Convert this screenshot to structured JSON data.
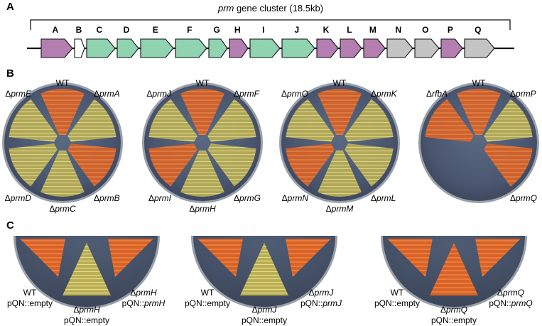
{
  "panelA": {
    "letter": "A",
    "title_italic": "prm",
    "title_rest": " gene cluster (18.5kb)",
    "genes": [
      {
        "label": "A",
        "color": "#b47fb0"
      },
      {
        "label": "B",
        "color": "#ffffff"
      },
      {
        "label": "C",
        "color": "#8fd3b0"
      },
      {
        "label": "D",
        "color": "#8fd3b0"
      },
      {
        "label": "E",
        "color": "#8fd3b0"
      },
      {
        "label": "F",
        "color": "#8fd3b0"
      },
      {
        "label": "G",
        "color": "#8fd3b0"
      },
      {
        "label": "H",
        "color": "#b47fb0"
      },
      {
        "label": "I",
        "color": "#8fd3b0"
      },
      {
        "label": "J",
        "color": "#8fd3b0"
      },
      {
        "label": "K",
        "color": "#b47fb0"
      },
      {
        "label": "L",
        "color": "#b47fb0"
      },
      {
        "label": "M",
        "color": "#b47fb0"
      },
      {
        "label": "N",
        "color": "#c4c4c4"
      },
      {
        "label": "O",
        "color": "#c4c4c4"
      },
      {
        "label": "P",
        "color": "#b47fb0"
      },
      {
        "label": "Q",
        "color": "#c4c4c4"
      }
    ]
  },
  "panelB": {
    "letter": "B",
    "plates": [
      {
        "top": "WT",
        "top_left": "ΔprmE",
        "top_right": "ΔprmA",
        "bottom_left": "ΔprmD",
        "bottom": "ΔprmC",
        "bottom_right": "ΔprmB"
      },
      {
        "top": "WT",
        "top_left": "ΔprmJ",
        "top_right": "ΔprmF",
        "bottom_left": "ΔprmI",
        "bottom": "ΔprmH",
        "bottom_right": "ΔprmG"
      },
      {
        "top": "WT",
        "top_left": "ΔprmO",
        "top_right": "ΔprmK",
        "bottom_left": "ΔprmN",
        "bottom": "ΔprmM",
        "bottom_right": "ΔprmL"
      },
      {
        "top": "WT",
        "top_left": "ΔrfbA",
        "top_right": "ΔprmP",
        "bottom_left": "",
        "bottom": "",
        "bottom_right": "ΔprmQ"
      }
    ]
  },
  "panelC": {
    "letter": "C",
    "plates": [
      {
        "left1": "WT",
        "left2": "pQN::empty",
        "center1": "ΔprmH",
        "center2": "pQN::empty",
        "right1": "ΔprmH",
        "right2": "pQN::prmH"
      },
      {
        "left1": "WT",
        "left2": "pQN::empty",
        "center1": "ΔprmJ",
        "center2": "pQN::empty",
        "right1": "ΔprmJ",
        "right2": "pQN::prmJ"
      },
      {
        "left1": "WT",
        "left2": "pQN::empty",
        "center1": "ΔprmQ",
        "center2": "pQN::empty",
        "right1": "ΔprmQ",
        "right2": "pQN::prmQ"
      }
    ]
  }
}
